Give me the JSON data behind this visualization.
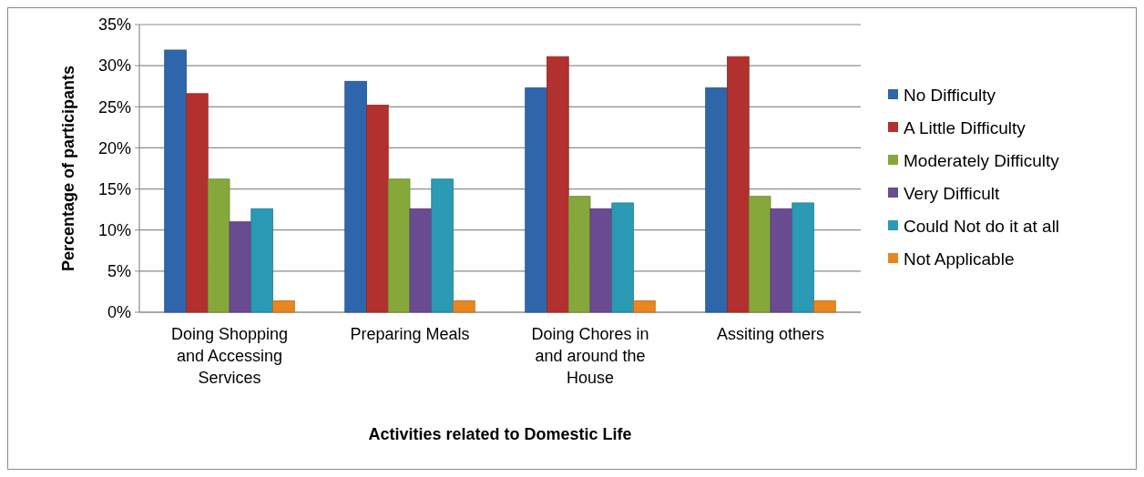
{
  "chart_data": {
    "type": "bar",
    "xlabel": "Activities related to Domestic Life",
    "ylabel": "Percentage of participants",
    "categories": [
      "Doing Shopping and Accessing Services",
      "Preparing Meals",
      "Doing Chores in and around the House",
      "Assiting others"
    ],
    "series": [
      {
        "name": "No Difficulty",
        "color": "#2f66ab",
        "values": [
          31.9,
          28.1,
          27.3,
          27.3
        ]
      },
      {
        "name": "A Little Difficulty",
        "color": "#b2302e",
        "values": [
          26.6,
          25.2,
          31.1,
          31.1
        ]
      },
      {
        "name": "Moderately Difficulty",
        "color": "#86a83a",
        "values": [
          16.2,
          16.2,
          14.1,
          14.1
        ]
      },
      {
        "name": "Very Difficult",
        "color": "#6a4a90",
        "values": [
          11.0,
          12.6,
          12.6,
          12.6
        ]
      },
      {
        "name": "Could Not do it at all",
        "color": "#2a9ab5",
        "values": [
          12.6,
          16.2,
          13.3,
          13.3
        ]
      },
      {
        "name": "Not Applicable",
        "color": "#e8861f",
        "values": [
          1.4,
          1.4,
          1.4,
          1.4
        ]
      }
    ],
    "ylim": [
      0,
      35
    ],
    "yticks": [
      {
        "value": 0,
        "label": "0%"
      },
      {
        "value": 5,
        "label": "5%"
      },
      {
        "value": 10,
        "label": "10%"
      },
      {
        "value": 15,
        "label": "15%"
      },
      {
        "value": 20,
        "label": "20%"
      },
      {
        "value": 25,
        "label": "25%"
      },
      {
        "value": 30,
        "label": "30%"
      },
      {
        "value": 35,
        "label": "35%"
      }
    ],
    "grid": "y",
    "legend": "right"
  }
}
